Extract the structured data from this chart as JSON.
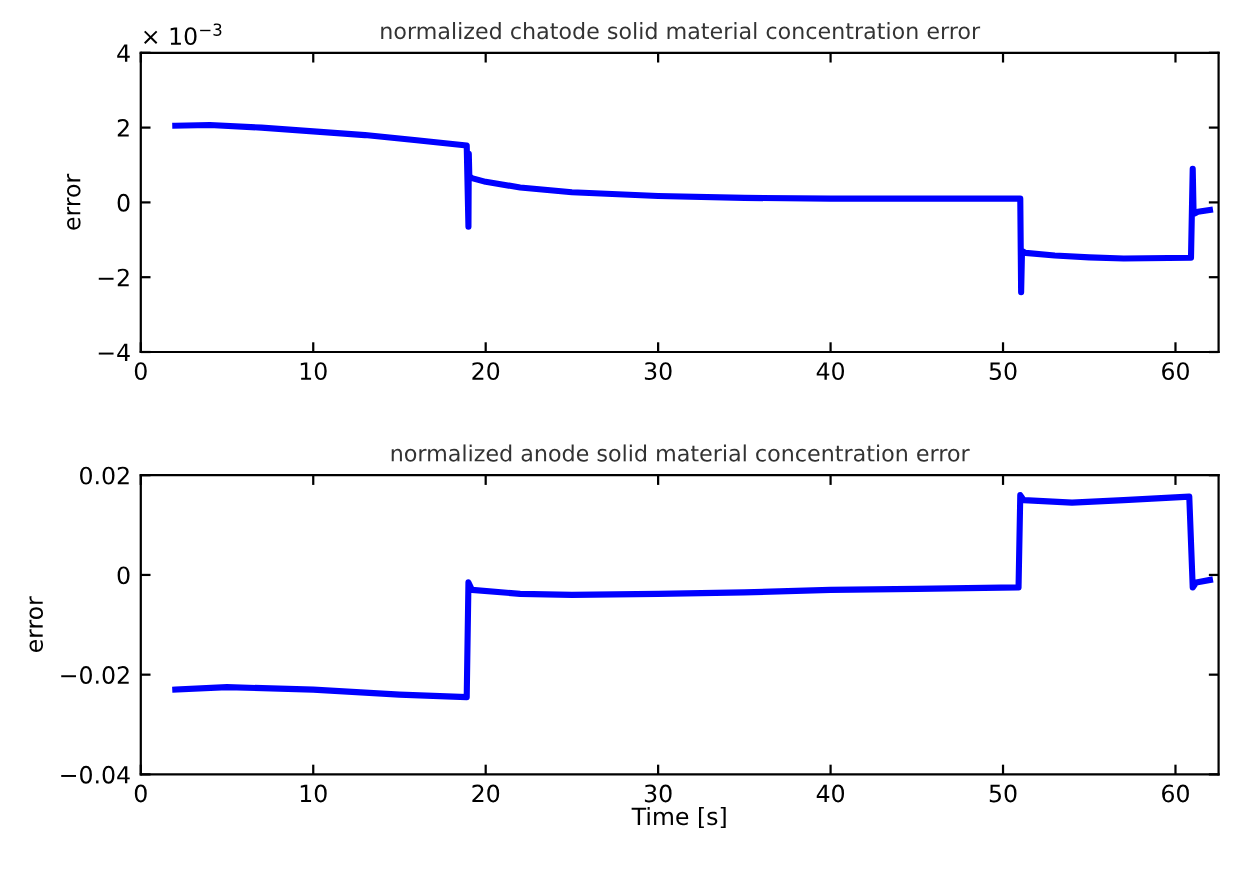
{
  "chart_data": [
    {
      "type": "line",
      "title": "normalized chatode solid material concentration error",
      "ylabel": "error",
      "annotations": [
        "× 10$^{−3}$"
      ],
      "xlim": [
        0,
        62.5
      ],
      "xticks": [
        0,
        10,
        20,
        30,
        40,
        50,
        60
      ],
      "ylim": [
        -4,
        4
      ],
      "yticks": [
        {
          "value": -4,
          "label": "−4"
        },
        {
          "value": -2,
          "label": "−2"
        },
        0,
        2,
        4
      ],
      "grid": false,
      "line_style": "solid",
      "marker": "none",
      "series": [
        {
          "color": "#0000ff",
          "x": [
            2,
            4,
            7,
            10,
            13,
            16,
            18.9,
            19.0,
            19.02,
            19.05,
            19.2,
            20,
            22,
            25,
            30,
            35,
            40,
            45,
            50.9,
            51.0,
            51.05,
            51.1,
            51.3,
            53,
            55,
            57,
            60.9,
            61.0,
            61.05,
            61.1,
            61.3,
            62
          ],
          "values": [
            2.05,
            2.07,
            2.0,
            1.9,
            1.8,
            1.66,
            1.52,
            -0.65,
            1.3,
            0.7,
            0.65,
            0.55,
            0.4,
            0.27,
            0.17,
            0.12,
            0.1,
            0.1,
            0.1,
            0.1,
            -2.4,
            -1.3,
            -1.35,
            -1.42,
            -1.47,
            -1.5,
            -1.48,
            0.9,
            -0.3,
            -0.3,
            -0.25,
            -0.2
          ]
        }
      ]
    },
    {
      "type": "line",
      "title": "normalized anode solid material concentration error",
      "xlabel": "Time [s]",
      "ylabel": "error",
      "xlim": [
        0,
        62.5
      ],
      "xticks": [
        0,
        10,
        20,
        30,
        40,
        50,
        60
      ],
      "ylim": [
        -0.04,
        0.02
      ],
      "yticks": [
        {
          "value": -0.04,
          "label": "−0.04"
        },
        {
          "value": -0.02,
          "label": "−0.02"
        },
        0,
        0.02
      ],
      "grid": false,
      "line_style": "solid",
      "marker": "none",
      "series": [
        {
          "color": "#0000ff",
          "x": [
            2,
            5,
            10,
            15,
            18.9,
            19.0,
            19.2,
            22,
            25,
            30,
            35,
            40,
            45,
            50.9,
            51.0,
            51.2,
            54,
            57,
            60.8,
            61.0,
            61.2,
            62
          ],
          "values": [
            -0.023,
            -0.0225,
            -0.023,
            -0.024,
            -0.0245,
            -0.0015,
            -0.003,
            -0.0038,
            -0.004,
            -0.0038,
            -0.0035,
            -0.003,
            -0.0028,
            -0.0025,
            0.016,
            0.015,
            0.0145,
            0.015,
            0.0157,
            -0.0025,
            -0.0015,
            -0.001
          ]
        }
      ]
    }
  ]
}
